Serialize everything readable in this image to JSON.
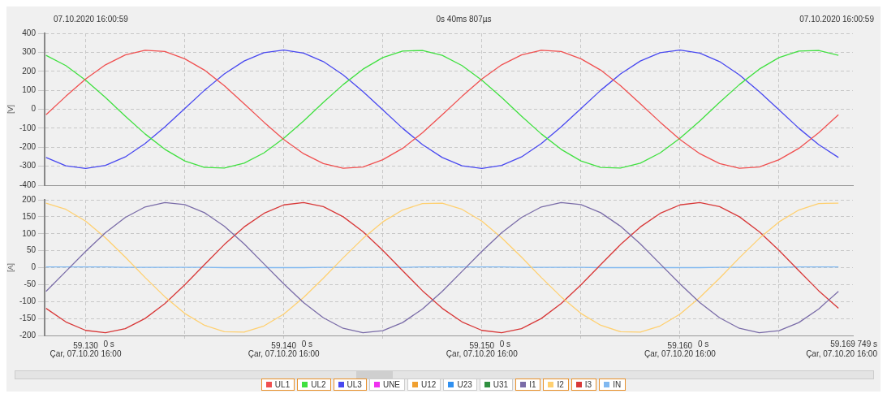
{
  "chart_data": [
    {
      "type": "line",
      "annotations": [
        "07.10.2020 16:00:59",
        "0s 40ms 807µs",
        "07.10.2020 16:00:59"
      ],
      "ylabel": "[V]",
      "x": [
        59.128,
        59.129,
        59.13,
        59.131,
        59.132,
        59.133,
        59.134,
        59.135,
        59.136,
        59.137,
        59.138,
        59.139,
        59.14,
        59.141,
        59.142,
        59.143,
        59.144,
        59.145,
        59.146,
        59.147,
        59.148,
        59.149,
        59.15,
        59.151,
        59.152,
        59.153,
        59.154,
        59.155,
        59.156,
        59.157,
        59.158,
        59.159,
        59.16,
        59.161,
        59.162,
        59.163,
        59.164,
        59.165,
        59.166,
        59.167,
        59.168
      ],
      "xlim": [
        59.12793,
        59.16873
      ],
      "xticks": [
        59.13,
        {
          "value": 59.135,
          "label": null
        },
        59.14,
        {
          "value": 59.145,
          "label": null
        },
        59.15,
        {
          "value": 59.155,
          "label": null
        },
        59.16,
        {
          "value": 59.165,
          "label": null
        }
      ],
      "ylim": [
        -400,
        400
      ],
      "yticks": [
        -400,
        -300,
        -200,
        -100,
        0,
        100,
        200,
        300,
        400
      ],
      "grid": true,
      "tick_labels": "y",
      "legend": "bottom",
      "line_style": "solid",
      "marker": "none",
      "series": [
        {
          "name": "UL1",
          "color": "#f05050",
          "values": [
            -29,
            68,
            159,
            234,
            286,
            311,
            304,
            266,
            206,
            124,
            29,
            -68,
            -159,
            -234,
            -286,
            -311,
            -304,
            -266,
            -206,
            -124,
            -29,
            68,
            159,
            234,
            286,
            311,
            304,
            266,
            206,
            124,
            29,
            -68,
            -159,
            -234,
            -286,
            -311,
            -304,
            -266,
            -206,
            -124,
            -29
          ]
        },
        {
          "name": "UL2",
          "color": "#40e040",
          "values": [
            284,
            230,
            153,
            62,
            -36,
            -130,
            -211,
            -272,
            -306,
            -310,
            -284,
            -230,
            -153,
            -62,
            36,
            130,
            211,
            272,
            306,
            310,
            284,
            230,
            153,
            62,
            -36,
            -130,
            -211,
            -272,
            -306,
            -310,
            -284,
            -230,
            -153,
            -62,
            36,
            130,
            211,
            272,
            306,
            310,
            284
          ]
        },
        {
          "name": "UL3",
          "color": "#4848f0",
          "values": [
            -254,
            -298,
            -312,
            -296,
            -251,
            -181,
            -93,
            3,
            100,
            186,
            254,
            298,
            312,
            296,
            251,
            181,
            93,
            -3,
            -100,
            -186,
            -254,
            -298,
            -312,
            -296,
            -251,
            -181,
            -93,
            3,
            100,
            186,
            254,
            298,
            312,
            296,
            251,
            181,
            93,
            -3,
            -100,
            -186,
            -254
          ]
        },
        {
          "name": "UNE",
          "color": "#f030f0",
          "values": [
            null,
            null,
            null,
            null,
            null,
            null,
            null,
            null,
            null,
            null,
            null,
            null,
            null,
            null,
            null,
            null,
            null,
            null,
            null,
            null,
            null,
            null,
            null,
            null,
            null,
            null,
            null,
            null,
            null,
            null,
            null,
            null,
            null,
            null,
            null,
            null,
            null,
            null,
            null,
            null,
            null
          ]
        },
        {
          "name": "U12",
          "color": "#f0a030",
          "values": [
            null,
            null,
            null,
            null,
            null,
            null,
            null,
            null,
            null,
            null,
            null,
            null,
            null,
            null,
            null,
            null,
            null,
            null,
            null,
            null,
            null,
            null,
            null,
            null,
            null,
            null,
            null,
            null,
            null,
            null,
            null,
            null,
            null,
            null,
            null,
            null,
            null,
            null,
            null,
            null,
            null
          ]
        },
        {
          "name": "U23",
          "color": "#3090f0",
          "values": [
            null,
            null,
            null,
            null,
            null,
            null,
            null,
            null,
            null,
            null,
            null,
            null,
            null,
            null,
            null,
            null,
            null,
            null,
            null,
            null,
            null,
            null,
            null,
            null,
            null,
            null,
            null,
            null,
            null,
            null,
            null,
            null,
            null,
            null,
            null,
            null,
            null,
            null,
            null,
            null,
            null
          ]
        },
        {
          "name": "U31",
          "color": "#309040",
          "values": [
            null,
            null,
            null,
            null,
            null,
            null,
            null,
            null,
            null,
            null,
            null,
            null,
            null,
            null,
            null,
            null,
            null,
            null,
            null,
            null,
            null,
            null,
            null,
            null,
            null,
            null,
            null,
            null,
            null,
            null,
            null,
            null,
            null,
            null,
            null,
            null,
            null,
            null,
            null,
            null,
            null
          ]
        }
      ]
    },
    {
      "type": "line",
      "annotations": [
        "0 s\nÇar, 07.10.20 16:00",
        "0 s\nÇar, 07.10.20 16:00",
        "0 s\nÇar, 07.10.20 16:00",
        "0 s\nÇar, 07.10.20 16:00",
        "59.169 749 s\nÇar, 07.10.20 16:00"
      ],
      "ylabel": "[A]",
      "x": [
        59.128,
        59.129,
        59.13,
        59.131,
        59.132,
        59.133,
        59.134,
        59.135,
        59.136,
        59.137,
        59.138,
        59.139,
        59.14,
        59.141,
        59.142,
        59.143,
        59.144,
        59.145,
        59.146,
        59.147,
        59.148,
        59.149,
        59.15,
        59.151,
        59.152,
        59.153,
        59.154,
        59.155,
        59.156,
        59.157,
        59.158,
        59.159,
        59.16,
        59.161,
        59.162,
        59.163,
        59.164,
        59.165,
        59.166,
        59.167,
        59.168
      ],
      "xlim": [
        59.12793,
        59.16873
      ],
      "xticks": [
        {
          "value": 59.13,
          "label": "59.130"
        },
        {
          "value": 59.135,
          "label": null
        },
        {
          "value": 59.14,
          "label": "59.140"
        },
        {
          "value": 59.145,
          "label": null
        },
        {
          "value": 59.15,
          "label": "59.150"
        },
        {
          "value": 59.155,
          "label": null
        },
        {
          "value": 59.16,
          "label": "59.160"
        },
        {
          "value": 59.165,
          "label": null
        }
      ],
      "ylim": [
        -200,
        200
      ],
      "yticks": [
        -200,
        -150,
        -100,
        -50,
        0,
        50,
        100,
        150,
        200
      ],
      "grid": true,
      "legend": "bottom",
      "line_style": "solid",
      "marker": "none",
      "series": [
        {
          "name": "I1",
          "color": "#7a6ca8",
          "values": [
            -70,
            -11,
            48,
            103,
            148,
            179,
            192,
            186,
            162,
            122,
            70,
            11,
            -48,
            -103,
            -148,
            -179,
            -192,
            -186,
            -162,
            -122,
            -70,
            -11,
            48,
            103,
            148,
            179,
            192,
            186,
            162,
            122,
            70,
            11,
            -48,
            -103,
            -148,
            -179,
            -192,
            -186,
            -162,
            -122,
            -70
          ]
        },
        {
          "name": "I2",
          "color": "#ffd070",
          "values": [
            190,
            172,
            137,
            88,
            31,
            -29,
            -86,
            -135,
            -170,
            -189,
            -190,
            -172,
            -137,
            -88,
            -31,
            29,
            86,
            135,
            170,
            189,
            190,
            172,
            137,
            88,
            31,
            -29,
            -86,
            -135,
            -170,
            -189,
            -190,
            -172,
            -137,
            -88,
            -31,
            29,
            86,
            135,
            170,
            189,
            190
          ]
        },
        {
          "name": "I3",
          "color": "#d83838",
          "values": [
            -120,
            -160,
            -185,
            -192,
            -180,
            -150,
            -106,
            -51,
            9,
            68,
            120,
            160,
            185,
            192,
            180,
            150,
            106,
            51,
            -9,
            -68,
            -120,
            -160,
            -185,
            -192,
            -180,
            -150,
            -106,
            -51,
            9,
            68,
            120,
            160,
            185,
            192,
            180,
            150,
            106,
            51,
            -9,
            -68,
            -120
          ]
        },
        {
          "name": "IN",
          "color": "#80b8f0",
          "values": [
            2,
            2,
            2,
            2,
            1,
            1,
            1,
            1,
            1,
            0,
            0,
            0,
            0,
            0,
            1,
            1,
            1,
            1,
            1,
            2,
            2,
            2,
            2,
            2,
            1,
            1,
            1,
            1,
            0,
            0,
            0,
            0,
            0,
            0,
            1,
            1,
            1,
            1,
            2,
            2,
            2
          ]
        }
      ]
    }
  ]
}
